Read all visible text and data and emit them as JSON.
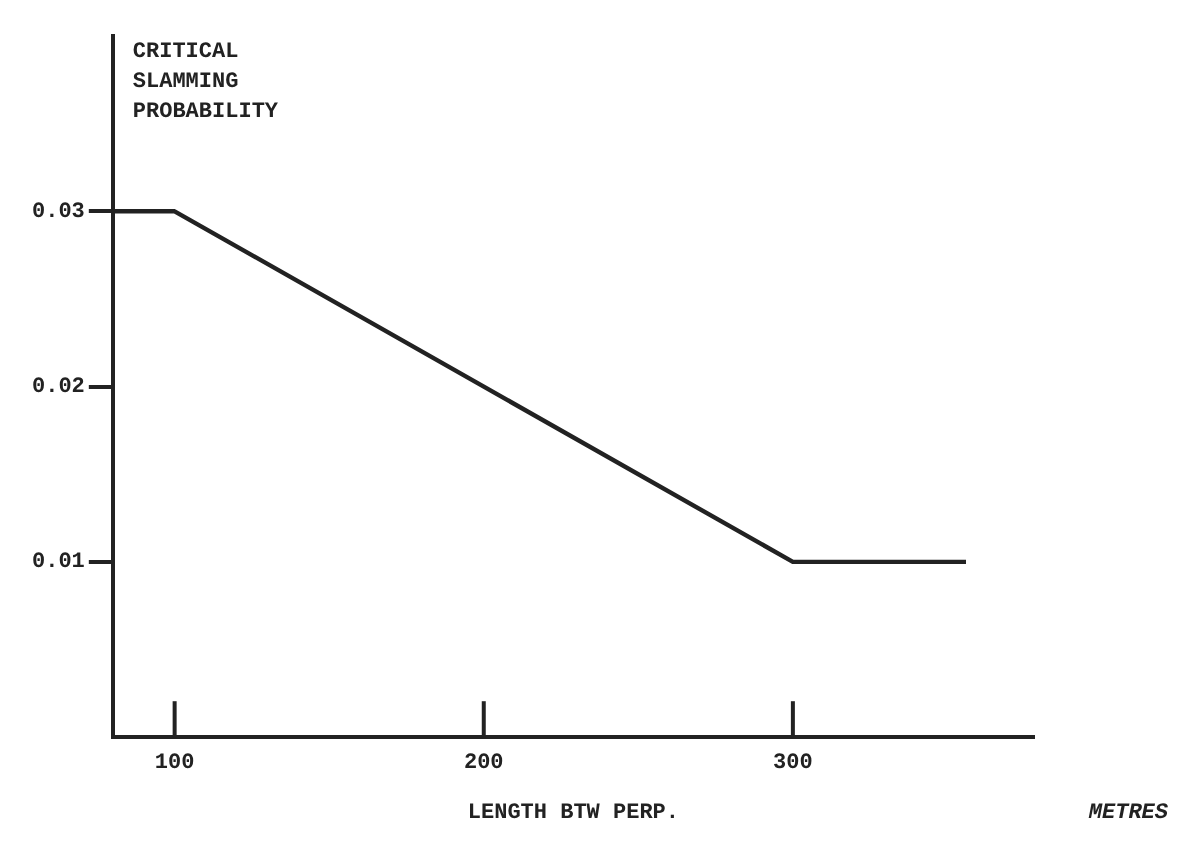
{
  "chart_data": {
    "type": "line",
    "xlabel": "LENGTH BTW PERP.",
    "ylabel": "CRITICAL SLAMMING PROBABILITY",
    "annotations": [
      "METRES"
    ],
    "x": [
      80,
      100,
      300,
      356
    ],
    "series": [
      {
        "color": "#222222",
        "values": [
          0.03,
          0.03,
          0.01,
          0.01
        ]
      }
    ],
    "xlim": [
      80,
      378
    ],
    "xticks": [
      100,
      200,
      300
    ],
    "ylim": [
      0,
      0.04
    ],
    "yticks": [
      0.01,
      0.02,
      0.03
    ],
    "grid": false,
    "legend": false,
    "marker": "none",
    "line_style": "solid"
  }
}
